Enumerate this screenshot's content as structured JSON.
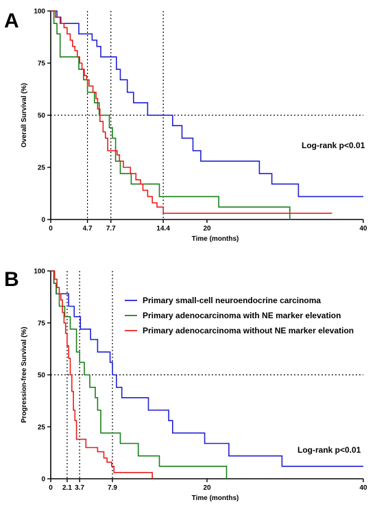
{
  "chart_data": [
    {
      "panel": "A",
      "type": "line",
      "step": "post",
      "xlabel": "Time (months)",
      "ylabel": "Overall Survival (%)",
      "xlim": [
        0,
        40
      ],
      "ylim": [
        0,
        100
      ],
      "xticks": [
        "0",
        "4.7",
        "7.7",
        "14.4",
        "20",
        "40"
      ],
      "xtick_values": [
        0,
        4.7,
        7.7,
        14.4,
        20,
        40
      ],
      "yticks": [
        "0",
        "25",
        "50",
        "75",
        "100"
      ],
      "ytick_values": [
        0,
        25,
        50,
        75,
        100
      ],
      "median_x": [
        4.7,
        7.7,
        14.4
      ],
      "reference_y": 50,
      "annotation": "Log-rank p<0.01",
      "legend": false,
      "series": [
        {
          "color": "#1f1fd6",
          "x": [
            0,
            0.8,
            1.3,
            3.6,
            5.3,
            5.9,
            6.4,
            8.4,
            8.9,
            9.8,
            10.6,
            11.3,
            12.4,
            14.4,
            15.6,
            16.8,
            17.5,
            18.2,
            19.2,
            20.6,
            26.7,
            28.3,
            31.7,
            34.4,
            38.6,
            40
          ],
          "y": [
            100,
            97,
            94,
            89,
            86,
            83,
            78,
            72,
            67,
            61,
            56,
            56,
            50,
            50,
            45,
            39,
            39,
            33,
            28,
            28,
            22,
            17,
            11,
            11,
            11,
            11
          ]
        },
        {
          "color": "#1a7f1a",
          "x": [
            0,
            0.4,
            0.8,
            1.2,
            3.0,
            3.6,
            4.2,
            4.7,
            5.6,
            6.2,
            7.5,
            7.9,
            8.3,
            8.9,
            9.5,
            10.3,
            11.6,
            13.9,
            15.6,
            21.5,
            30.0,
            30.6
          ],
          "y": [
            100,
            94,
            89,
            78,
            78,
            72,
            67,
            61,
            56,
            50,
            44,
            39,
            28,
            22,
            22,
            17,
            17,
            11,
            11,
            6,
            6,
            0
          ]
        },
        {
          "color": "#e81c1c",
          "x": [
            0,
            0.6,
            1.2,
            1.7,
            2.1,
            2.5,
            2.8,
            3.1,
            3.4,
            3.7,
            4.0,
            4.3,
            4.6,
            4.9,
            5.4,
            5.8,
            6.0,
            6.3,
            6.7,
            7.0,
            7.3,
            8.2,
            8.5,
            8.8,
            9.3,
            10.2,
            10.9,
            11.5,
            11.8,
            12.4,
            13.0,
            13.6,
            14.4,
            36.0
          ],
          "y": [
            100,
            97,
            94,
            92,
            89,
            86,
            83,
            81,
            78,
            75,
            72,
            69,
            67,
            64,
            61,
            58,
            53,
            47,
            42,
            39,
            33,
            33,
            31,
            28,
            25,
            22,
            19,
            17,
            14,
            11,
            8,
            6,
            3,
            3
          ]
        }
      ]
    },
    {
      "panel": "B",
      "type": "line",
      "step": "post",
      "xlabel": "Time (months)",
      "ylabel": "Progression-free Survival (%)",
      "xlim": [
        0,
        40
      ],
      "ylim": [
        0,
        100
      ],
      "xticks": [
        "0",
        "2.1",
        "3.7",
        "7.9",
        "20",
        "40"
      ],
      "xtick_values": [
        0,
        2.1,
        3.7,
        7.9,
        20,
        40
      ],
      "yticks": [
        "0",
        "25",
        "50",
        "75",
        "100"
      ],
      "ytick_values": [
        0,
        25,
        50,
        75,
        100
      ],
      "median_x": [
        2.1,
        3.7,
        7.9
      ],
      "reference_y": 50,
      "annotation": "Log-rank p<0.01",
      "legend_placement": "top-right",
      "series": [
        {
          "name": "Primary small-cell neuroendocrine carcinoma",
          "color": "#1f1fd6",
          "x": [
            0,
            0.4,
            0.7,
            1.4,
            2.3,
            3.0,
            3.8,
            5.1,
            6.0,
            7.6,
            7.9,
            8.4,
            9.1,
            10.9,
            12.5,
            15.1,
            15.6,
            17.6,
            19.7,
            22.8,
            29.6,
            40
          ],
          "y": [
            100,
            94,
            89,
            89,
            83,
            78,
            72,
            67,
            61,
            56,
            50,
            44,
            39,
            39,
            33,
            28,
            22,
            22,
            17,
            11,
            6,
            6
          ]
        },
        {
          "color": "#1a7f1a",
          "name": "Primary adenocarcinoma with NE marker elevation",
          "x": [
            0,
            0.4,
            0.7,
            1.1,
            1.8,
            2.5,
            3.3,
            3.7,
            4.3,
            5.0,
            5.7,
            6.0,
            6.4,
            8.1,
            8.9,
            11.2,
            13.9,
            21.0,
            22.5
          ],
          "y": [
            100,
            94,
            89,
            83,
            78,
            72,
            61,
            56,
            50,
            44,
            39,
            33,
            22,
            22,
            17,
            11,
            6,
            6,
            0
          ]
        },
        {
          "color": "#e81c1c",
          "name": "Primary adenocarcinoma without NE marker elevation",
          "x": [
            0,
            0.5,
            0.8,
            1.1,
            1.3,
            1.5,
            1.7,
            1.9,
            2.1,
            2.3,
            2.5,
            2.7,
            2.9,
            3.1,
            3.3,
            4.5,
            6.0,
            6.8,
            7.2,
            7.8,
            8.1,
            12.3,
            13.0
          ],
          "y": [
            100,
            96,
            92,
            89,
            86,
            80,
            75,
            70,
            64,
            58,
            50,
            42,
            33,
            28,
            19,
            15,
            13,
            10,
            8,
            6,
            3,
            3,
            0
          ]
        }
      ]
    }
  ]
}
